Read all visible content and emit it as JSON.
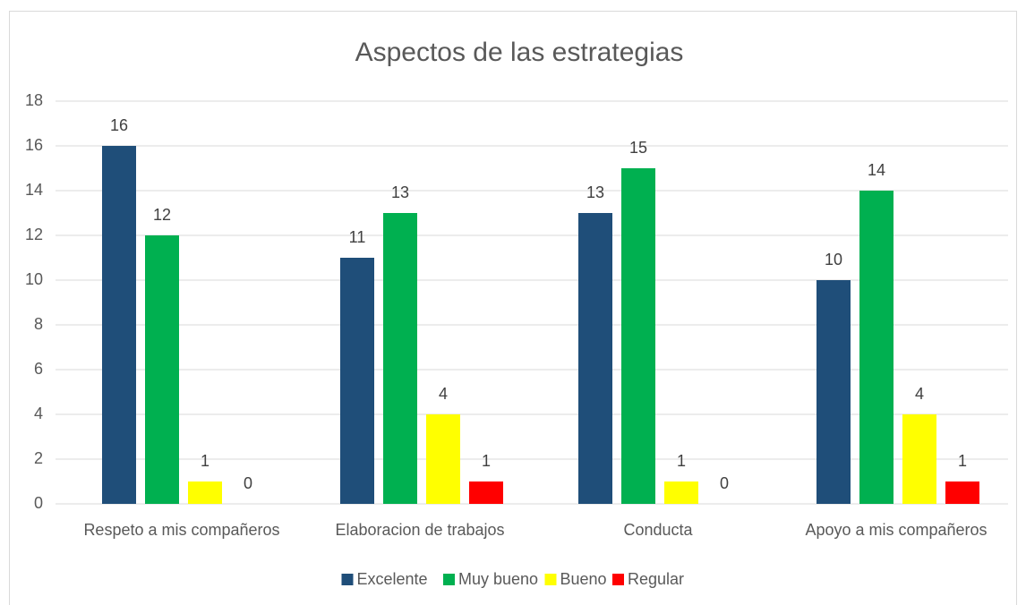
{
  "chart_data": {
    "type": "bar",
    "title": "Aspectos de las estrategias",
    "categories": [
      "Respeto a mis compañeros",
      "Elaboracion de trabajos",
      "Conducta",
      "Apoyo a mis compañeros"
    ],
    "series": [
      {
        "name": "Excelente",
        "color": "#1f4e79",
        "values": [
          16,
          11,
          13,
          10
        ]
      },
      {
        "name": "Muy bueno",
        "color": "#00b050",
        "values": [
          12,
          13,
          15,
          14
        ]
      },
      {
        "name": "Bueno",
        "color": "#ffff00",
        "values": [
          1,
          4,
          1,
          4
        ]
      },
      {
        "name": "Regular",
        "color": "#ff0000",
        "values": [
          0,
          1,
          0,
          1
        ]
      }
    ],
    "ylim": [
      0,
      18
    ],
    "yticks": [
      0,
      2,
      4,
      6,
      8,
      10,
      12,
      14,
      16,
      18
    ],
    "grid": true,
    "legend": "bottom"
  }
}
